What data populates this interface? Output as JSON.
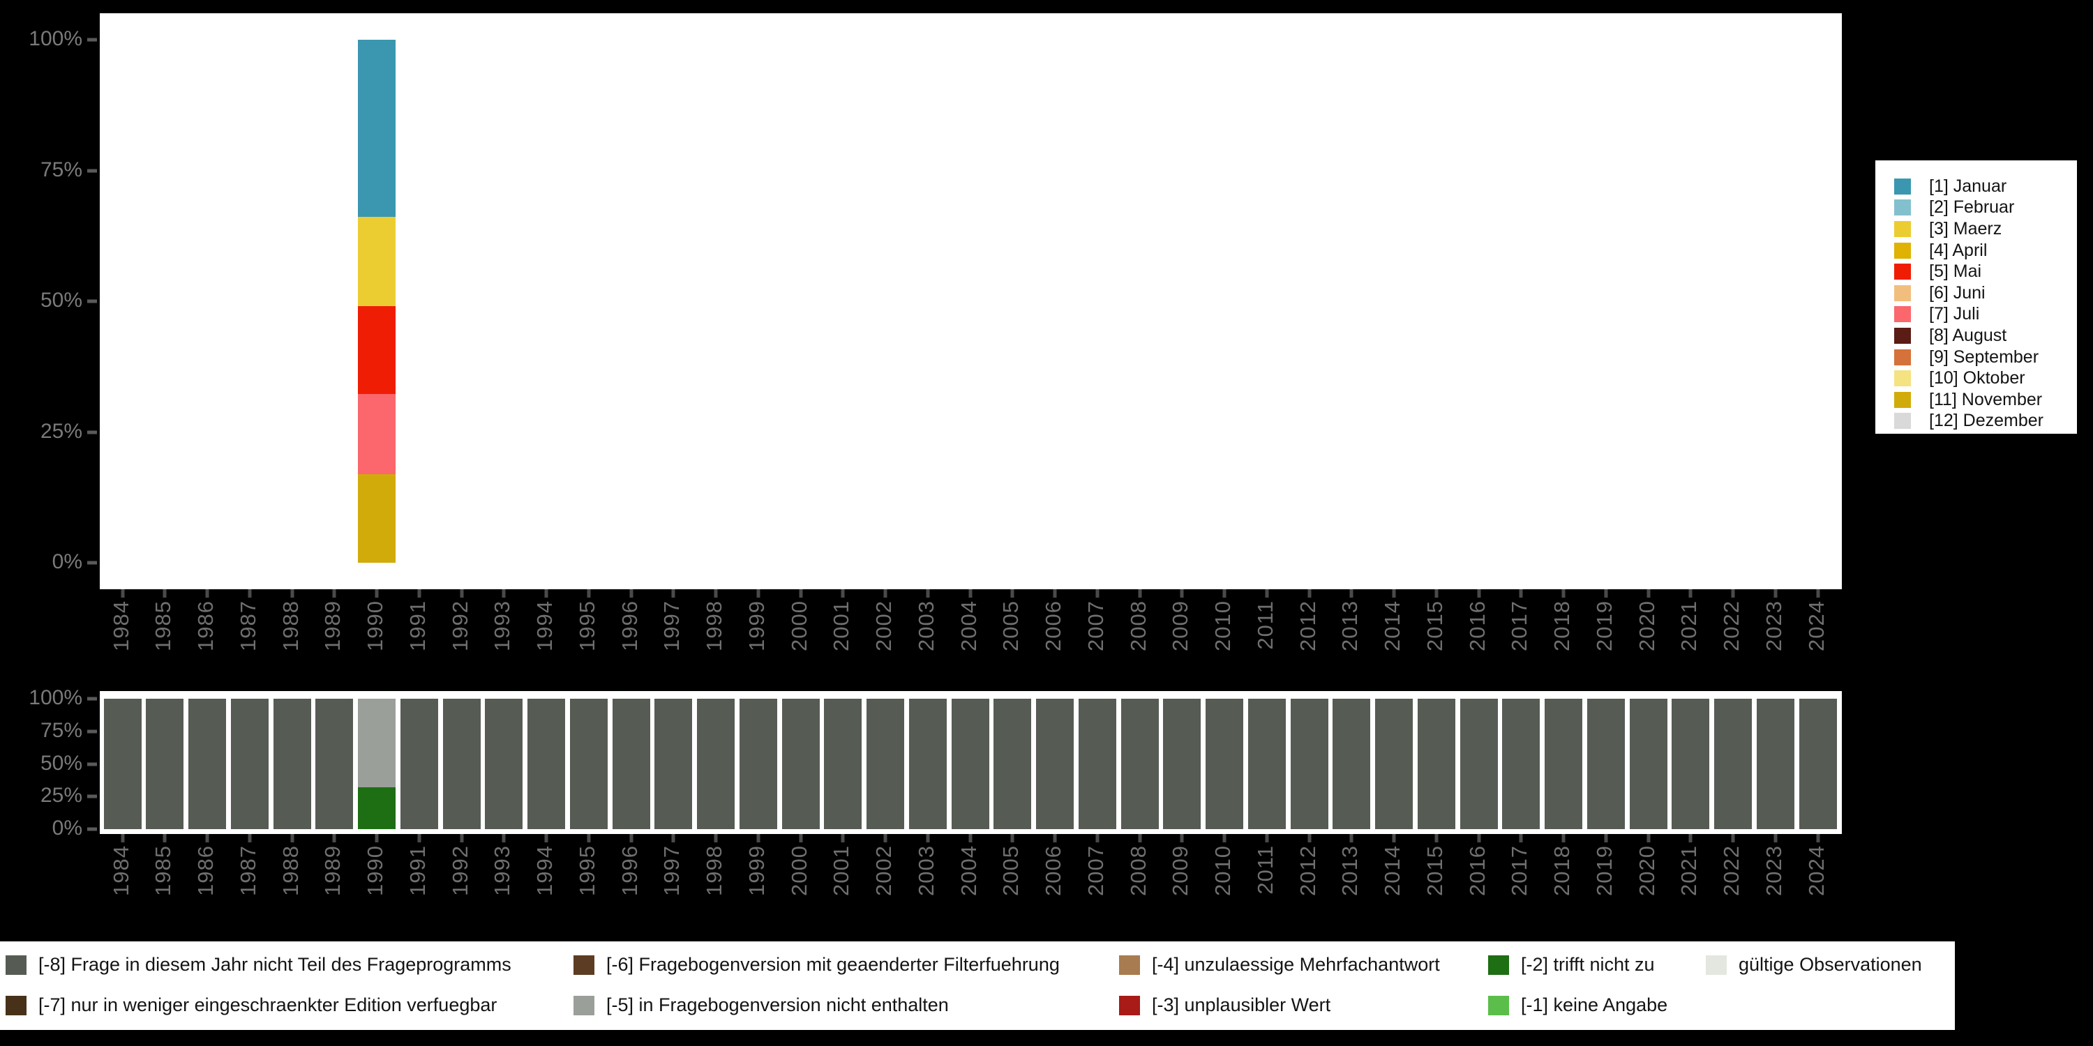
{
  "chart_data": [
    {
      "id": "months_chart",
      "type": "bar",
      "stacked": true,
      "orientation": "vertical",
      "unit": "%",
      "ylim": [
        0,
        100
      ],
      "grid": false,
      "yticks": [
        {
          "label": "100%",
          "value": 100
        },
        {
          "label": "75%",
          "value": 75
        },
        {
          "label": "50%",
          "value": 50
        },
        {
          "label": "25%",
          "value": 25
        },
        {
          "label": "0%",
          "value": 0
        }
      ],
      "years": [
        1984,
        1985,
        1986,
        1987,
        1988,
        1989,
        1990,
        1991,
        1992,
        1993,
        1994,
        1995,
        1996,
        1997,
        1998,
        1999,
        2000,
        2001,
        2002,
        2003,
        2004,
        2005,
        2006,
        2007,
        2008,
        2009,
        2010,
        2011,
        2012,
        2013,
        2014,
        2015,
        2016,
        2017,
        2018,
        2019,
        2020,
        2021,
        2022,
        2023,
        2024
      ],
      "bars": [
        {
          "year": 1990,
          "segments_top_to_bottom": [
            {
              "label": "[1] Januar",
              "value": 33.8
            },
            {
              "label": "[3] Maerz",
              "value": 17.1
            },
            {
              "label": "[5] Mai",
              "value": 16.8
            },
            {
              "label": "[7] Juli",
              "value": 15.4
            },
            {
              "label": "[11] November",
              "value": 16.9
            }
          ]
        }
      ],
      "legend_position": "right",
      "legend": [
        {
          "label": "[1] Januar",
          "color": "#3B97B0"
        },
        {
          "label": "[2] Februar",
          "color": "#82C0CE"
        },
        {
          "label": "[3] Maerz",
          "color": "#EBCD32"
        },
        {
          "label": "[4] April",
          "color": "#DFB203"
        },
        {
          "label": "[5] Mai",
          "color": "#F01D05"
        },
        {
          "label": "[6] Juni",
          "color": "#F2BE7E"
        },
        {
          "label": "[7] Juli",
          "color": "#FB676D"
        },
        {
          "label": "[8] August",
          "color": "#5A1C15"
        },
        {
          "label": "[9] September",
          "color": "#D5713A"
        },
        {
          "label": "[10] Oktober",
          "color": "#F5E281"
        },
        {
          "label": "[11] November",
          "color": "#D1AB0A"
        },
        {
          "label": "[12] Dezember",
          "color": "#D9D9D9"
        }
      ]
    },
    {
      "id": "missings_chart",
      "type": "bar",
      "stacked": true,
      "orientation": "vertical",
      "unit": "%",
      "ylim": [
        0,
        100
      ],
      "grid": false,
      "yticks": [
        {
          "label": "100%",
          "value": 100
        },
        {
          "label": "75%",
          "value": 75
        },
        {
          "label": "50%",
          "value": 50
        },
        {
          "label": "25%",
          "value": 25
        },
        {
          "label": "0%",
          "value": 0
        }
      ],
      "years": [
        1984,
        1985,
        1986,
        1987,
        1988,
        1989,
        1990,
        1991,
        1992,
        1993,
        1994,
        1995,
        1996,
        1997,
        1998,
        1999,
        2000,
        2001,
        2002,
        2003,
        2004,
        2005,
        2006,
        2007,
        2008,
        2009,
        2010,
        2011,
        2012,
        2013,
        2014,
        2015,
        2016,
        2017,
        2018,
        2019,
        2020,
        2021,
        2022,
        2023,
        2024
      ],
      "default_segments_top_to_bottom": [
        {
          "label": "[-8] Frage in diesem Jahr nicht Teil des Frageprogramms",
          "value": 100
        }
      ],
      "bars": [
        {
          "year": 1990,
          "segments_top_to_bottom": [
            {
              "label": "[-5] in Fragebogenversion nicht enthalten",
              "value": 68
            },
            {
              "label": "[-2] trifft nicht zu",
              "value": 32
            }
          ]
        }
      ],
      "legend_position": "bottom",
      "legend_columns": [
        [
          {
            "label": "[-8] Frage in diesem Jahr nicht Teil des Frageprogramms",
            "color": "#565C54"
          },
          {
            "label": "[-7] nur in weniger eingeschraenkter Edition verfuegbar",
            "color": "#473119"
          }
        ],
        [
          {
            "label": "[-6] Fragebogenversion mit geaenderter Filterfuehrung",
            "color": "#5D3C24"
          },
          {
            "label": "[-5] in Fragebogenversion nicht enthalten",
            "color": "#9AA099"
          }
        ],
        [
          {
            "label": "[-4] unzulaessige Mehrfachantwort",
            "color": "#A87C50"
          },
          {
            "label": "[-3] unplausibler Wert",
            "color": "#A81B17"
          }
        ],
        [
          {
            "label": "[-2] trifft nicht zu",
            "color": "#1E6E14"
          },
          {
            "label": "[-1] keine Angabe",
            "color": "#5BBE4A"
          }
        ],
        [
          {
            "label": "gültige Observationen",
            "color": "#E3E7E0"
          }
        ]
      ]
    }
  ],
  "axis": {
    "tick_color": "#4a4a4a",
    "label_color": "#7a7a7a"
  },
  "background_color": "#000000"
}
